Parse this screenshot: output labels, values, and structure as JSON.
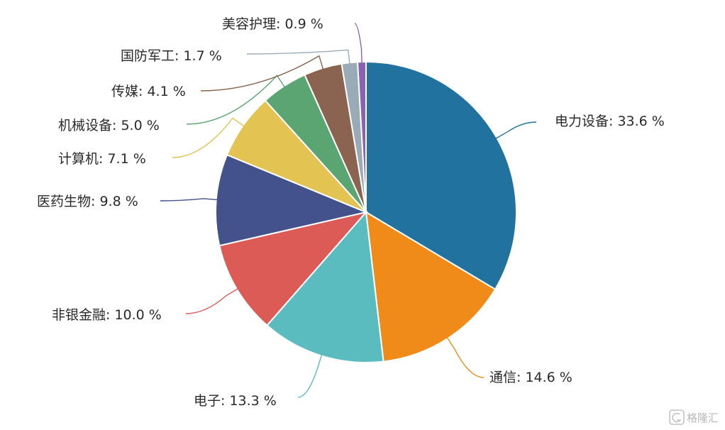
{
  "chart_data": {
    "type": "pie",
    "slices": [
      {
        "label": "电力设备",
        "value": 33.6,
        "display": "电力设备: 33.6 %",
        "color": "#2272a0"
      },
      {
        "label": "通信",
        "value": 14.6,
        "display": "通信: 14.6 %",
        "color": "#f08a18"
      },
      {
        "label": "电子",
        "value": 13.3,
        "display": "电子: 13.3 %",
        "color": "#5bbcc0"
      },
      {
        "label": "非银金融",
        "value": 10.0,
        "display": "非银金融: 10.0 %",
        "color": "#dc5b57"
      },
      {
        "label": "医药生物",
        "value": 9.8,
        "display": "医药生物: 9.8 %",
        "color": "#43528a"
      },
      {
        "label": "计算机",
        "value": 7.1,
        "display": "计算机: 7.1 %",
        "color": "#e3c352"
      },
      {
        "label": "机械设备",
        "value": 5.0,
        "display": "机械设备: 5.0 %",
        "color": "#5aa572"
      },
      {
        "label": "传媒",
        "value": 4.1,
        "display": "传媒: 4.1 %",
        "color": "#8a6450"
      },
      {
        "label": "国防军工",
        "value": 1.7,
        "display": "国防军工: 1.7 %",
        "color": "#9aabb8"
      },
      {
        "label": "美容护理",
        "value": 0.9,
        "display": "美容护理: 0.9 %",
        "color": "#8a62b4"
      }
    ],
    "legend": "none",
    "labels": "outside with leader lines"
  },
  "watermark": {
    "text": "格隆汇",
    "icon": "g-logo-icon"
  }
}
